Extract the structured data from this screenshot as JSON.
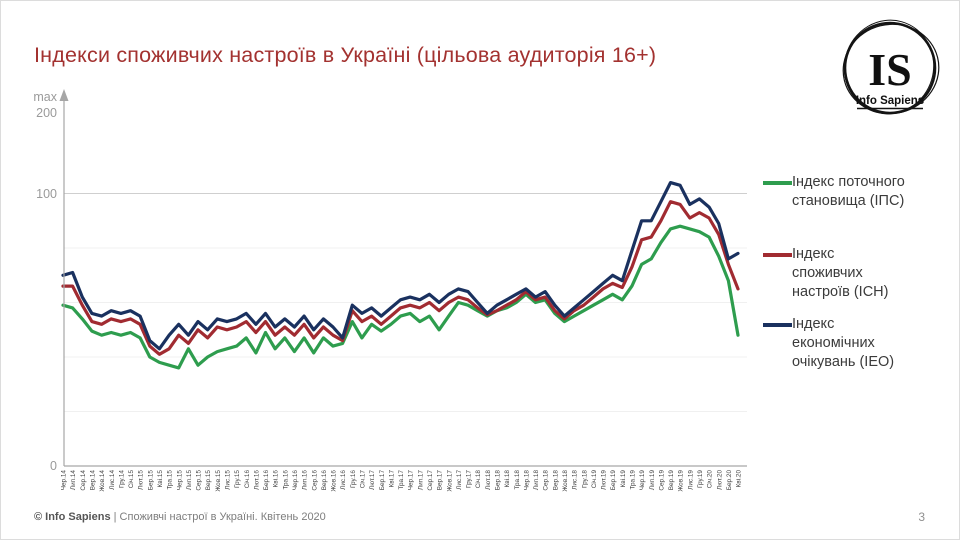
{
  "slide": {
    "title": "Індекси споживчих настроїв в Україні (цільова аудиторія 16+)",
    "page_number": "3",
    "footer": {
      "brand": "© Info Sapiens",
      "separator": " | ",
      "text": "Споживчі настрої в Україні. Квітень 2020"
    },
    "logo": {
      "monogram": "IS",
      "name": "Info Sapiens"
    }
  },
  "axis": {
    "max_label": "max",
    "max_value": "200",
    "mid_value": "100",
    "zero_value": "0"
  },
  "legend": [
    {
      "label": "Індекс поточного\nстановища (ІПС)",
      "color": "#2e9d4e"
    },
    {
      "label": "Індекс\nспоживчих\nнастроїв (ІСН)",
      "color": "#a12b31"
    },
    {
      "label": "Індекс\nекономічних\nочікувань (ІЕО)",
      "color": "#1a315f"
    }
  ],
  "chart_data": {
    "type": "line",
    "title": "Індекси споживчих настроїв в Україні (цільова аудиторія 16+)",
    "xlabel": "",
    "ylabel": "",
    "ylim": [
      0,
      200
    ],
    "yticks_labeled": [
      0,
      100
    ],
    "y_theoretical_max": 200,
    "gridlines": [
      20,
      40,
      60,
      80,
      100
    ],
    "grid": "horizontal-faint",
    "legend_position": "right",
    "categories": [
      "Чер.14",
      "Лип.14",
      "Сер.14",
      "Вер.14",
      "Жов.14",
      "Лис.14",
      "Гру.14",
      "Січ.15",
      "Лют.15",
      "Бер.15",
      "Кві.15",
      "Тра.15",
      "Чер.15",
      "Лип.15",
      "Сер.15",
      "Вер.15",
      "Жов.15",
      "Лис.15",
      "Гру.15",
      "Січ.16",
      "Лют.16",
      "Бер.16",
      "Кві.16",
      "Тра.16",
      "Чер.16",
      "Лип.16",
      "Сер.16",
      "Вер.16",
      "Жов.16",
      "Лис.16",
      "Гру.16",
      "Січ.17",
      "Лют.17",
      "Бер.17",
      "Кві.17",
      "Тра.17",
      "Чер.17",
      "Лип.17",
      "Сер.17",
      "Вер.17",
      "Жов.17",
      "Лис.17",
      "Гру.17",
      "Січ.18",
      "Лют.18",
      "Бер.18",
      "Кві.18",
      "Тра.18",
      "Чер.18",
      "Лип.18",
      "Сер.18",
      "Вер.18",
      "Жов.18",
      "Лис.18",
      "Гру.18",
      "Січ.19",
      "Лют.19",
      "Бер.19",
      "Кві.19",
      "Тра.19",
      "Чер.19",
      "Лип.19",
      "Сер.19",
      "Вер.19",
      "Жов.19",
      "Лис.19",
      "Гру.19",
      "Січ.20",
      "Лют.20",
      "Бер.20",
      "Кві.20"
    ],
    "series": [
      {
        "name": "Індекс поточного становища (ІПС)",
        "color": "#2e9d4e",
        "values": [
          59,
          58,
          54,
          49.5,
          48,
          49,
          48,
          49,
          47,
          40,
          38,
          37,
          36,
          43,
          37,
          40,
          42,
          43,
          44,
          47,
          41.5,
          49,
          43,
          47,
          42,
          47,
          41.5,
          47,
          44,
          45,
          53,
          47,
          52,
          49.5,
          52,
          55,
          56,
          53,
          55,
          50,
          55,
          60,
          59,
          57,
          55,
          57,
          58,
          60,
          63,
          60,
          61,
          56,
          53,
          55,
          57,
          59,
          61,
          63,
          61,
          66,
          74,
          76,
          82,
          87,
          88,
          87,
          86,
          84,
          77,
          68,
          48
        ]
      },
      {
        "name": "Індекс споживчих настроїв (ІСН)",
        "color": "#a12b31",
        "values": [
          66,
          66,
          59,
          53,
          52,
          54,
          53,
          54,
          52,
          44,
          41,
          43,
          48,
          45,
          50,
          47,
          51,
          50,
          51,
          53,
          49,
          53,
          48,
          51,
          48,
          52,
          47,
          51,
          48,
          46,
          57,
          53,
          55,
          52,
          55,
          58,
          59,
          58,
          60,
          57,
          60,
          62,
          61,
          58,
          55.5,
          57,
          59,
          61,
          64,
          61,
          62,
          57,
          54,
          57,
          59,
          62,
          65,
          67,
          65.5,
          73,
          83,
          84,
          90,
          97,
          96,
          91,
          93,
          91,
          85,
          74,
          65
        ]
      },
      {
        "name": "Індекс економічних очікувань (ІЕО)",
        "color": "#1a315f",
        "values": [
          70,
          71,
          62,
          56,
          55,
          57,
          56,
          57,
          55,
          46,
          43,
          48,
          52,
          48,
          53,
          50,
          54,
          53,
          54,
          56,
          52,
          56,
          51,
          54,
          51,
          55,
          50,
          54,
          51,
          47,
          59,
          56,
          58,
          55,
          58,
          61,
          62,
          61,
          63,
          60,
          63,
          65,
          64,
          60,
          56,
          59,
          61,
          63,
          65,
          62,
          64,
          59,
          55,
          58,
          61,
          64,
          67,
          70,
          68,
          79,
          90,
          90,
          97,
          104,
          103,
          96,
          98,
          95,
          89,
          76,
          78
        ]
      }
    ]
  }
}
